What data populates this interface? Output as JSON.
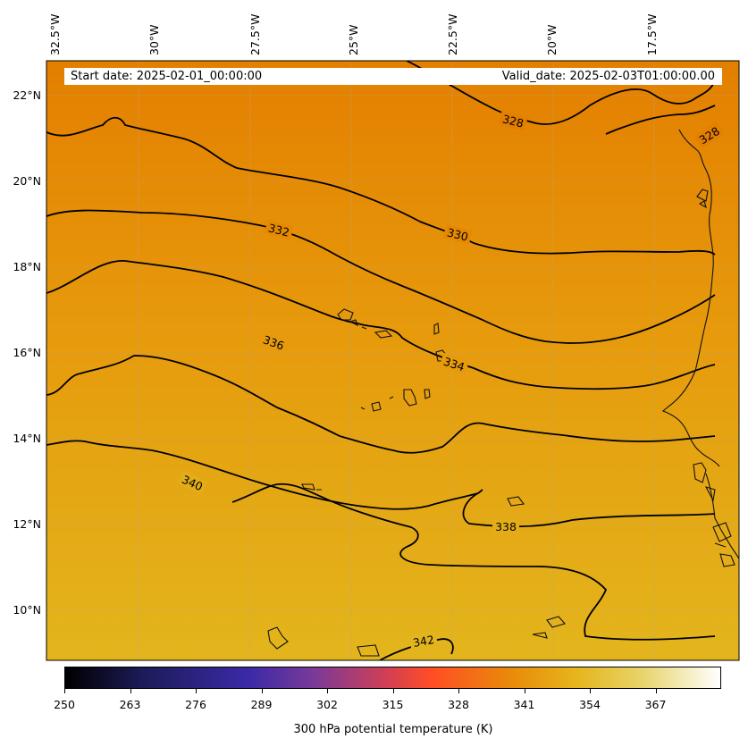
{
  "map": {
    "lon_labels": [
      "32.5°W",
      "30°W",
      "27.5°W",
      "25°W",
      "22.5°W",
      "20°W",
      "17.5°W"
    ],
    "lat_labels": [
      "22°N",
      "20°N",
      "18°N",
      "16°N",
      "14°N",
      "12°N",
      "10°N"
    ],
    "background_colors": {
      "north": "#e47f00",
      "middle": "#e69a0c",
      "south": "#e3b51d"
    },
    "contour_labels": [
      "328",
      "328",
      "332",
      "330",
      "336",
      "334",
      "340",
      "338",
      "342"
    ]
  },
  "header": {
    "start_date": "Start date: 2025-02-01_00:00:00",
    "valid_date": "Valid_date: 2025-02-03T01:00:00.00"
  },
  "colorbar": {
    "ticks": [
      "250",
      "263",
      "276",
      "289",
      "302",
      "315",
      "328",
      "341",
      "354",
      "367"
    ],
    "title": "300 hPa potential temperature (K)",
    "colormap": "CMRmap"
  }
}
